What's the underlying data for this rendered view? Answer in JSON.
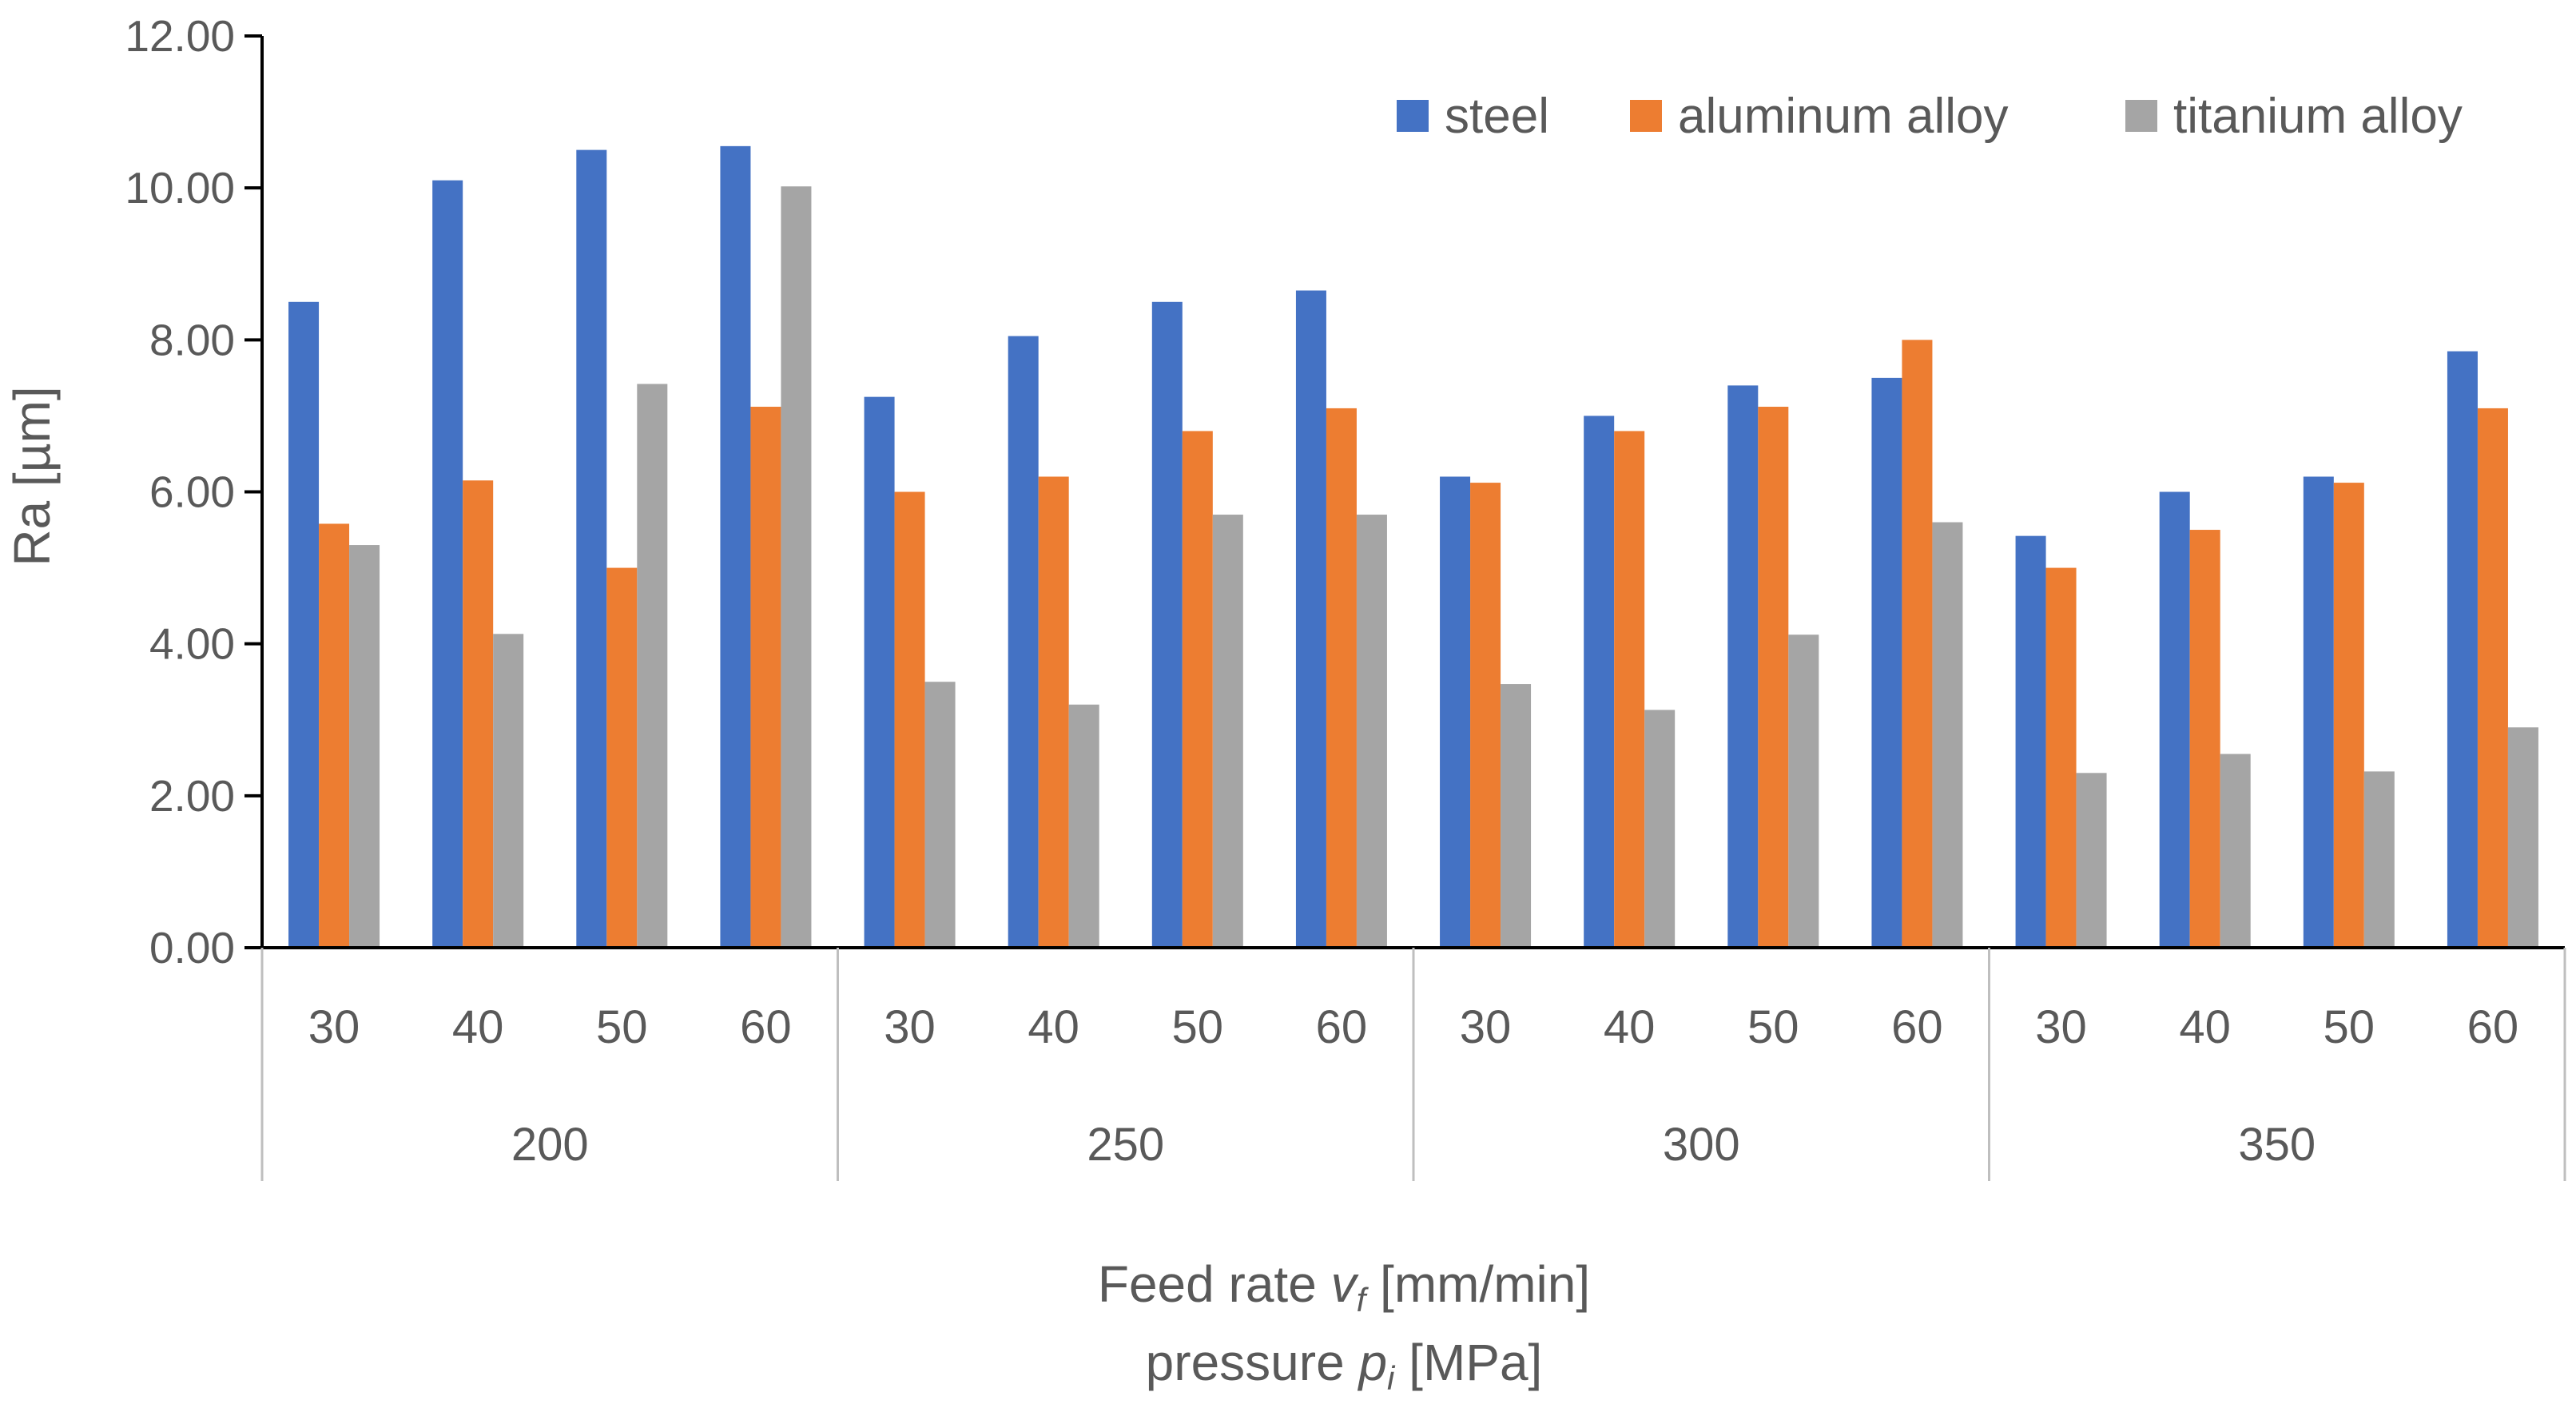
{
  "chart_data": {
    "type": "bar",
    "ylabel": "Ra [µm]",
    "xlabel": {
      "line1_prefix": "Feed rate ",
      "line1_var": "v",
      "line1_sub": "f",
      "line1_suffix": " [mm/min]",
      "line2_prefix": "pressure ",
      "line2_var": "p",
      "line2_sub": "i",
      "line2_suffix": " [MPa]"
    },
    "ylim": [
      0,
      12
    ],
    "yticks": [
      "0.00",
      "2.00",
      "4.00",
      "6.00",
      "8.00",
      "10.00",
      "12.00"
    ],
    "grid": false,
    "legend_position": "top-right",
    "groups": [
      {
        "label": "200",
        "categories": [
          "30",
          "40",
          "50",
          "60"
        ]
      },
      {
        "label": "250",
        "categories": [
          "30",
          "40",
          "50",
          "60"
        ]
      },
      {
        "label": "300",
        "categories": [
          "30",
          "40",
          "50",
          "60"
        ]
      },
      {
        "label": "350",
        "categories": [
          "30",
          "40",
          "50",
          "60"
        ]
      }
    ],
    "series": [
      {
        "name": "steel",
        "color": "#4472C4",
        "values": [
          8.5,
          10.1,
          10.5,
          10.55,
          7.25,
          8.05,
          8.5,
          8.65,
          6.2,
          7.0,
          7.4,
          7.5,
          5.42,
          6.0,
          6.2,
          7.85
        ]
      },
      {
        "name": "aluminum alloy",
        "color": "#ED7D31",
        "values": [
          5.58,
          6.15,
          5.0,
          7.12,
          6.0,
          6.2,
          6.8,
          7.1,
          6.12,
          6.8,
          7.12,
          8.0,
          5.0,
          5.5,
          6.12,
          7.1
        ]
      },
      {
        "name": "titanium alloy",
        "color": "#A5A5A5",
        "values": [
          5.3,
          4.13,
          7.42,
          10.02,
          3.5,
          3.2,
          5.7,
          5.7,
          3.47,
          3.13,
          4.12,
          5.6,
          2.3,
          2.55,
          2.32,
          2.9
        ]
      }
    ]
  }
}
